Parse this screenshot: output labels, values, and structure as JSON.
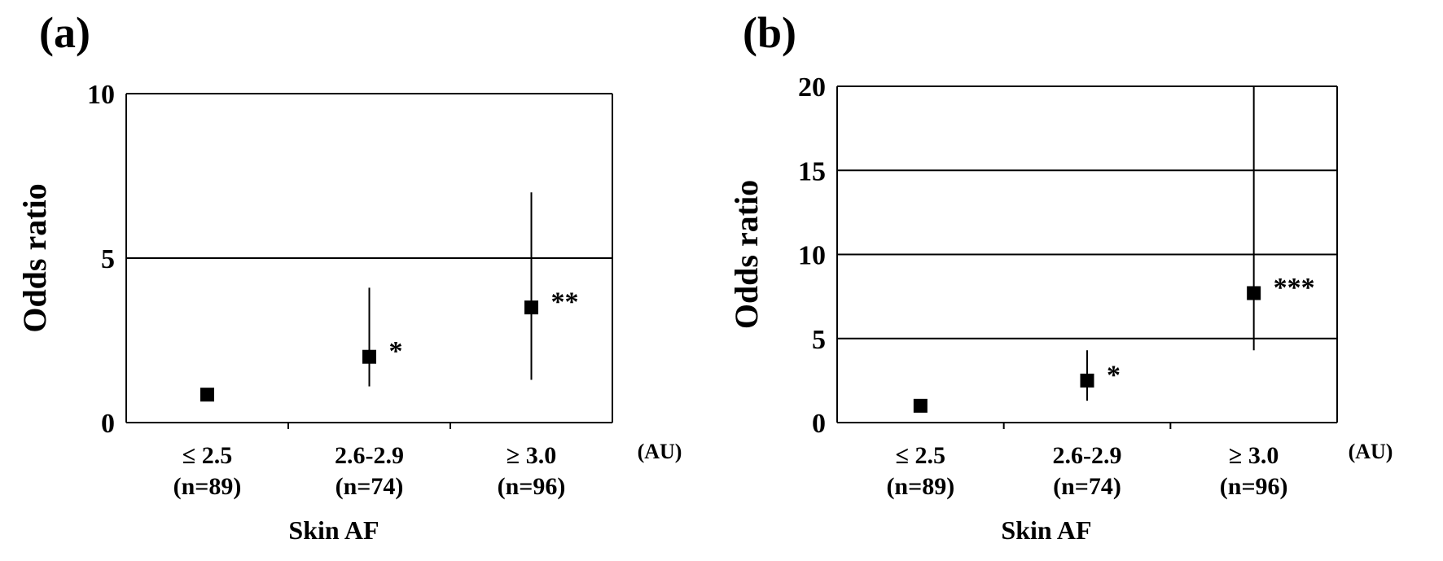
{
  "chart_data": [
    {
      "type": "scatter",
      "panel_label": "(a)",
      "xlabel": "Skin AF",
      "ylabel": "Odds ratio",
      "unit_label": "(AU)",
      "ylim": [
        0,
        10
      ],
      "yticks": [
        "0",
        "5",
        "10"
      ],
      "gridlines": [
        5,
        10
      ],
      "categories": [
        {
          "label": "≤ 2.5",
          "n": "(n=89)"
        },
        {
          "label": "2.6-2.9",
          "n": "(n=74)"
        },
        {
          "label": "≥ 3.0",
          "n": "(n=96)"
        }
      ],
      "points": [
        {
          "value": 0.85,
          "lower": null,
          "upper": null,
          "sig": ""
        },
        {
          "value": 2.0,
          "lower": 1.1,
          "upper": 4.1,
          "sig": "*"
        },
        {
          "value": 3.5,
          "lower": 1.3,
          "upper": 7.0,
          "sig": "**"
        }
      ]
    },
    {
      "type": "scatter",
      "panel_label": "(b)",
      "xlabel": "Skin AF",
      "ylabel": "Odds ratio",
      "unit_label": "(AU)",
      "ylim": [
        0,
        20
      ],
      "yticks": [
        "0",
        "5",
        "10",
        "15",
        "20"
      ],
      "gridlines": [
        5,
        10,
        15,
        20
      ],
      "categories": [
        {
          "label": "≤ 2.5",
          "n": "(n=89)"
        },
        {
          "label": "2.6-2.9",
          "n": "(n=74)"
        },
        {
          "label": "≥ 3.0",
          "n": "(n=96)"
        }
      ],
      "points": [
        {
          "value": 1.0,
          "lower": null,
          "upper": null,
          "sig": ""
        },
        {
          "value": 2.5,
          "lower": 1.3,
          "upper": 4.3,
          "sig": "*"
        },
        {
          "value": 7.7,
          "lower": 4.3,
          "upper": 20,
          "sig": "***"
        }
      ]
    }
  ]
}
